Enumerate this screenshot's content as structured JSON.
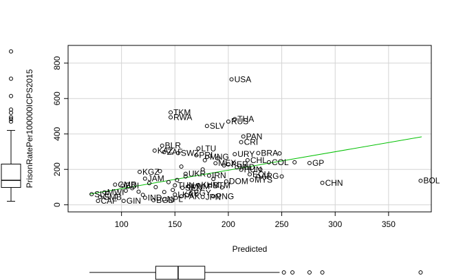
{
  "chart_data": {
    "type": "scatter",
    "title": "",
    "xlabel": "Predicted",
    "ylabel": "PrisonRatePer100000ICPS2015",
    "xlim": [
      50,
      390
    ],
    "ylim": [
      -40,
      900
    ],
    "xticks": [
      100,
      150,
      200,
      250,
      300,
      350
    ],
    "yticks": [
      0,
      200,
      400,
      600,
      800
    ],
    "grid": true,
    "fit_line": {
      "color": "#00c000",
      "x": [
        70,
        381
      ],
      "y": [
        60,
        384
      ]
    },
    "points": [
      {
        "label": "USA",
        "x": 203,
        "y": 708
      },
      {
        "label": "TKM",
        "x": 146,
        "y": 522
      },
      {
        "label": "RWA",
        "x": 146,
        "y": 494
      },
      {
        "label": "THA",
        "x": 206,
        "y": 484
      },
      {
        "label": "RUS",
        "x": 200,
        "y": 470
      },
      {
        "label": "SLV",
        "x": 180,
        "y": 445
      },
      {
        "label": "PAN",
        "x": 214,
        "y": 386
      },
      {
        "label": "CRI",
        "x": 212,
        "y": 354
      },
      {
        "label": "BLR",
        "x": 138,
        "y": 334
      },
      {
        "label": "LTU",
        "x": 172,
        "y": 318
      },
      {
        "label": "KAZ",
        "x": 131,
        "y": 306
      },
      {
        "label": "ZAF",
        "x": 140,
        "y": 298
      },
      {
        "label": "SWZ",
        "x": 153,
        "y": 292
      },
      {
        "label": "BRA",
        "x": 228,
        "y": 292
      },
      {
        "label": "URY",
        "x": 206,
        "y": 286
      },
      {
        "label": "PRI",
        "x": 170,
        "y": 280
      },
      {
        "label": "MNG",
        "x": 180,
        "y": 270
      },
      {
        "label": "CHL",
        "x": 218,
        "y": 252
      },
      {
        "label": "COL",
        "x": 238,
        "y": 240
      },
      {
        "label": "GP",
        "x": 276,
        "y": 236
      },
      {
        "label": "MEX",
        "x": 188,
        "y": 235
      },
      {
        "label": "PER",
        "x": 200,
        "y": 228
      },
      {
        "label": "MID",
        "x": 208,
        "y": 212
      },
      {
        "label": "HUN",
        "x": 212,
        "y": 198
      },
      {
        "label": "KGZ",
        "x": 117,
        "y": 186
      },
      {
        "label": "ECU",
        "x": 220,
        "y": 172
      },
      {
        "label": "ARG",
        "x": 228,
        "y": 162
      },
      {
        "label": "MYS",
        "x": 222,
        "y": 140
      },
      {
        "label": "DOM",
        "x": 198,
        "y": 132
      },
      {
        "label": "IRN",
        "x": 182,
        "y": 165
      },
      {
        "label": "UKR",
        "x": 160,
        "y": 175
      },
      {
        "label": "JAM",
        "x": 122,
        "y": 148
      },
      {
        "label": "CMR",
        "x": 94,
        "y": 114
      },
      {
        "label": "BDI",
        "x": 101,
        "y": 108
      },
      {
        "label": "TUN",
        "x": 150,
        "y": 110
      },
      {
        "label": "VNM",
        "x": 163,
        "y": 104
      },
      {
        "label": "KHM",
        "x": 172,
        "y": 112
      },
      {
        "label": "BTM",
        "x": 183,
        "y": 110
      },
      {
        "label": "SEN",
        "x": 157,
        "y": 96
      },
      {
        "label": "CHN",
        "x": 288,
        "y": 124
      },
      {
        "label": "BOL",
        "x": 380,
        "y": 136
      },
      {
        "label": "SLE",
        "x": 72,
        "y": 60
      },
      {
        "label": "MWI",
        "x": 84,
        "y": 70
      },
      {
        "label": "GMB",
        "x": 80,
        "y": 44
      },
      {
        "label": "CAF",
        "x": 78,
        "y": 22
      },
      {
        "label": "GIN",
        "x": 102,
        "y": 22
      },
      {
        "label": "IND",
        "x": 122,
        "y": 40
      },
      {
        "label": "BGD",
        "x": 130,
        "y": 26
      },
      {
        "label": "NPL",
        "x": 140,
        "y": 32
      },
      {
        "label": "LKA",
        "x": 150,
        "y": 58
      },
      {
        "label": "PAK",
        "x": 156,
        "y": 48
      },
      {
        "label": "EGY",
        "x": 165,
        "y": 66
      },
      {
        "label": "JPN",
        "x": 176,
        "y": 44
      },
      {
        "label": "PNG",
        "x": 186,
        "y": 48
      },
      {
        "label": "",
        "x": 140,
        "y": 72
      },
      {
        "label": "",
        "x": 148,
        "y": 84
      },
      {
        "label": "",
        "x": 165,
        "y": 90
      },
      {
        "label": "",
        "x": 170,
        "y": 74
      },
      {
        "label": "",
        "x": 126,
        "y": 122
      },
      {
        "label": "",
        "x": 136,
        "y": 190
      },
      {
        "label": "",
        "x": 156,
        "y": 216
      },
      {
        "label": "",
        "x": 178,
        "y": 252
      },
      {
        "label": "",
        "x": 190,
        "y": 262
      },
      {
        "label": "",
        "x": 250,
        "y": 160
      },
      {
        "label": "",
        "x": 248,
        "y": 290
      },
      {
        "label": "",
        "x": 262,
        "y": 240
      },
      {
        "label": "",
        "x": 230,
        "y": 200
      },
      {
        "label": "",
        "x": 116,
        "y": 74
      },
      {
        "label": "",
        "x": 110,
        "y": 94
      },
      {
        "label": "",
        "x": 132,
        "y": 100
      },
      {
        "label": "",
        "x": 144,
        "y": 128
      },
      {
        "label": "",
        "x": 152,
        "y": 140
      },
      {
        "label": "",
        "x": 186,
        "y": 146
      },
      {
        "label": "",
        "x": 194,
        "y": 98
      },
      {
        "label": "",
        "x": 120,
        "y": 56
      },
      {
        "label": "",
        "x": 104,
        "y": 80
      },
      {
        "label": "",
        "x": 160,
        "y": 160
      },
      {
        "label": "",
        "x": 176,
        "y": 200
      },
      {
        "label": "",
        "x": 196,
        "y": 222
      }
    ],
    "y_boxplot": {
      "whisker_low": 20,
      "q1": 98,
      "median": 138,
      "q3": 230,
      "whisker_high": 420,
      "outliers": [
        866,
        712,
        614,
        538,
        520,
        494,
        484,
        470
      ]
    },
    "x_boxplot": {
      "whisker_low": 70,
      "q1": 132,
      "median": 153,
      "q3": 178,
      "whisker_high": 248,
      "outliers": [
        252,
        260,
        276,
        288,
        380
      ]
    }
  }
}
